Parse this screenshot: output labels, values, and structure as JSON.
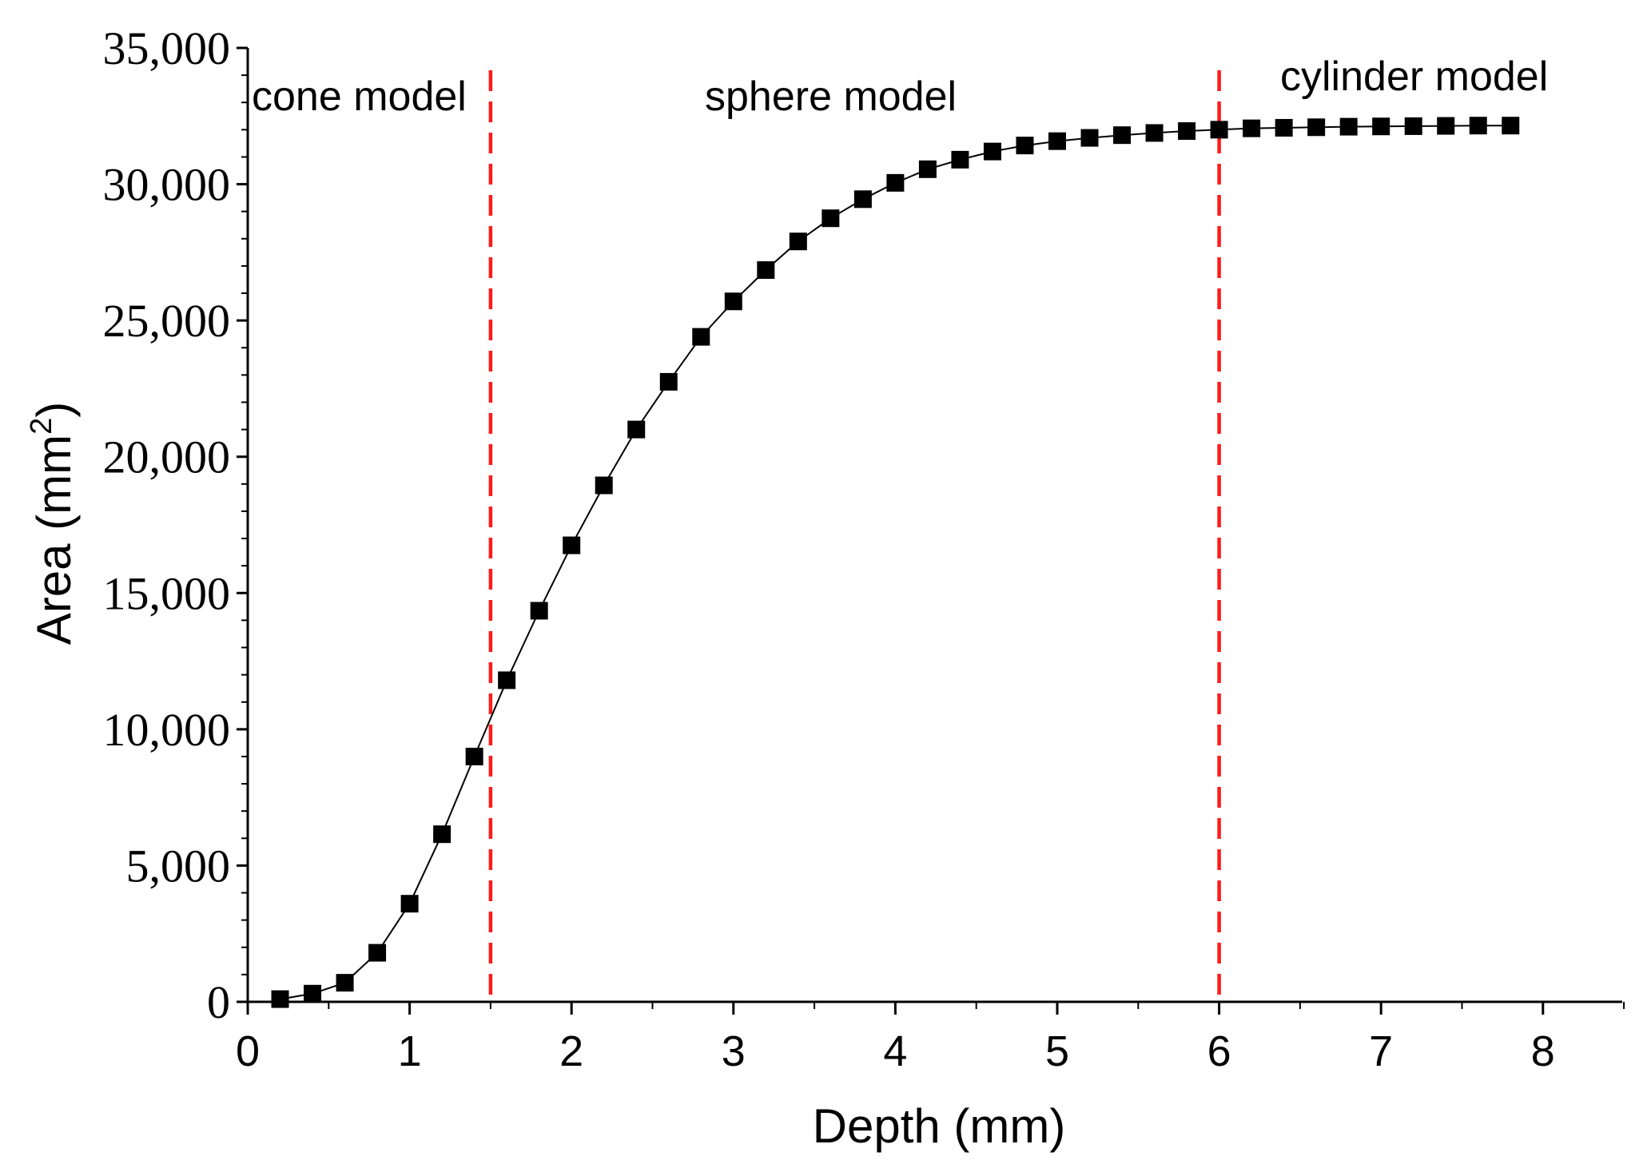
{
  "chart_data": {
    "type": "line",
    "xlabel": "Depth (mm)",
    "ylabel_main": "Area (mm",
    "ylabel_sup": "2",
    "ylabel_close": ")",
    "xlim": [
      0,
      8.5
    ],
    "ylim": [
      0,
      35000
    ],
    "x_ticks": [
      0,
      1,
      2,
      3,
      4,
      5,
      6,
      7,
      8
    ],
    "x_tick_labels": [
      "0",
      "1",
      "2",
      "3",
      "4",
      "5",
      "6",
      "7",
      "8"
    ],
    "y_ticks": [
      0,
      5000,
      10000,
      15000,
      20000,
      25000,
      30000,
      35000
    ],
    "y_tick_labels": [
      "0",
      "5,000",
      "10,000",
      "15,000",
      "20,000",
      "25,000",
      "30,000",
      "35,000"
    ],
    "marker": "square",
    "series_color": "#000000",
    "series": [
      {
        "name": "Area",
        "x": [
          0.2,
          0.4,
          0.6,
          0.8,
          1.0,
          1.2,
          1.4,
          1.6,
          1.8,
          2.0,
          2.2,
          2.4,
          2.6,
          2.8,
          3.0,
          3.2,
          3.4,
          3.6,
          3.8,
          4.0,
          4.2,
          4.4,
          4.6,
          4.8,
          5.0,
          5.2,
          5.4,
          5.6,
          5.8,
          6.0,
          6.2,
          6.4,
          6.6,
          6.8,
          7.0,
          7.2,
          7.4,
          7.6,
          7.8
        ],
        "y": [
          100,
          300,
          700,
          1800,
          3600,
          6150,
          9000,
          11800,
          14350,
          16750,
          18950,
          21000,
          22750,
          24400,
          25700,
          26850,
          27900,
          28750,
          29450,
          30050,
          30550,
          30900,
          31200,
          31420,
          31580,
          31700,
          31800,
          31880,
          31950,
          32000,
          32050,
          32070,
          32090,
          32110,
          32120,
          32130,
          32140,
          32150,
          32150
        ]
      }
    ],
    "vlines": [
      {
        "x": 1.5,
        "color": "#ff1a1a",
        "style": "dashed"
      },
      {
        "x": 6.0,
        "color": "#ff1a1a",
        "style": "dashed"
      }
    ],
    "annotations": [
      {
        "text": "cone model"
      },
      {
        "text": "sphere model"
      },
      {
        "text": "cylinder model"
      }
    ]
  }
}
